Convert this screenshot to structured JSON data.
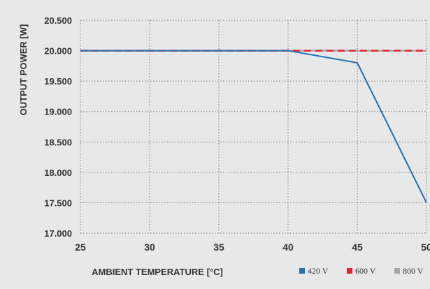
{
  "chart_data": {
    "type": "line",
    "title": "",
    "xlabel": "AMBIENT TEMPERATURE [°C]",
    "ylabel": "OUTPUT POWER [W]",
    "xlim": [
      25,
      50
    ],
    "ylim": [
      17000,
      20500
    ],
    "x_ticks": [
      25,
      30,
      35,
      40,
      45,
      50
    ],
    "x_tick_labels": [
      "25",
      "30",
      "35",
      "40",
      "45",
      "50"
    ],
    "y_ticks": [
      20500,
      20000,
      19500,
      19000,
      18500,
      18000,
      17500,
      17000
    ],
    "y_tick_labels": [
      "20.500",
      "20.000",
      "19.500",
      "19.000",
      "18.500",
      "18.000",
      "17.500",
      "17.000"
    ],
    "grid": true,
    "legend_placement": "bottom-right",
    "series": [
      {
        "name": "420 V",
        "color": "#1f6fb5",
        "dash": "solid",
        "x": [
          25,
          40,
          45,
          50
        ],
        "y": [
          20000,
          20000,
          19800,
          17500
        ]
      },
      {
        "name": "600 V",
        "color": "#e8202a",
        "dash": "dashed",
        "x": [
          25,
          50
        ],
        "y": [
          20000,
          20000
        ]
      },
      {
        "name": "800 V",
        "color": "#a6a6a6",
        "dash": "dashed",
        "x": [
          25,
          50
        ],
        "y": [
          20000,
          20000
        ]
      }
    ]
  }
}
